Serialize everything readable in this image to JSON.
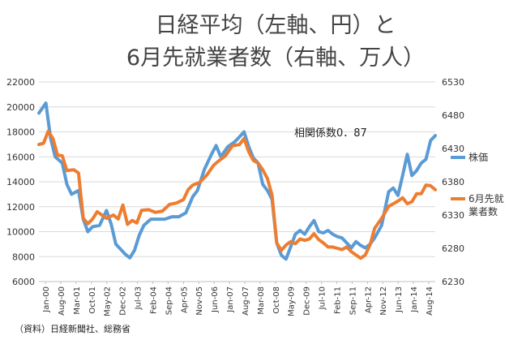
{
  "chart_data": {
    "type": "line",
    "title_lines": [
      "日経平均（左軸、円）と",
      "6月先就業者数（右軸、万人）"
    ],
    "annotation": "相関係数0．87",
    "source": "（資料）日経新聞社、総務省",
    "colors": {
      "stock": "#5b9bd5",
      "employment": "#ed7d31"
    },
    "x_ticks": [
      "Jan-00",
      "Aug-00",
      "Mar-01",
      "Oct-01",
      "May-02",
      "Dec-02",
      "Jul-03",
      "Feb-04",
      "Sep-04",
      "Apr-05",
      "Nov-05",
      "Jun-06",
      "Jan-07",
      "Aug-07",
      "Mar-08",
      "Oct-08",
      "May-09",
      "Dec-09",
      "Jul-10",
      "Feb-11",
      "Sep-11",
      "Apr-12",
      "Nov-12",
      "Jun-13",
      "Jan-14",
      "Aug-14"
    ],
    "left_axis": {
      "min": 6000,
      "max": 22000,
      "ticks": [
        "6000",
        "8000",
        "10000",
        "12000",
        "14000",
        "16000",
        "18000",
        "20000",
        "22000"
      ]
    },
    "right_axis": {
      "min": 6230,
      "max": 6530,
      "ticks": [
        "6230",
        "6280",
        "6330",
        "6380",
        "6430",
        "6480",
        "6530"
      ]
    },
    "legend": [
      {
        "name": "株価",
        "color": "#5b9bd5"
      },
      {
        "name": "6月先就業者数",
        "color": "#ed7d31"
      }
    ],
    "series": [
      {
        "name": "株価",
        "axis": "left",
        "points": [
          [
            0,
            19500
          ],
          [
            3,
            20300
          ],
          [
            5,
            17500
          ],
          [
            7,
            16000
          ],
          [
            10,
            15500
          ],
          [
            12,
            13800
          ],
          [
            14,
            13000
          ],
          [
            17,
            13300
          ],
          [
            19,
            11000
          ],
          [
            21,
            10000
          ],
          [
            23,
            10400
          ],
          [
            26,
            10500
          ],
          [
            29,
            11700
          ],
          [
            31,
            10600
          ],
          [
            33,
            9000
          ],
          [
            35,
            8600
          ],
          [
            37,
            8200
          ],
          [
            39,
            7900
          ],
          [
            41,
            8500
          ],
          [
            43,
            9700
          ],
          [
            45,
            10500
          ],
          [
            48,
            11000
          ],
          [
            51,
            11000
          ],
          [
            54,
            11000
          ],
          [
            57,
            11200
          ],
          [
            60,
            11200
          ],
          [
            63,
            11500
          ],
          [
            66,
            12800
          ],
          [
            68,
            13300
          ],
          [
            71,
            15000
          ],
          [
            74,
            16200
          ],
          [
            76,
            16900
          ],
          [
            78,
            16000
          ],
          [
            81,
            16800
          ],
          [
            84,
            17200
          ],
          [
            86,
            17600
          ],
          [
            88,
            18000
          ],
          [
            90,
            16800
          ],
          [
            92,
            15900
          ],
          [
            94,
            15500
          ],
          [
            96,
            13800
          ],
          [
            98,
            13300
          ],
          [
            100,
            12600
          ],
          [
            102,
            9100
          ],
          [
            104,
            8100
          ],
          [
            106,
            7800
          ],
          [
            108,
            8800
          ],
          [
            110,
            9800
          ],
          [
            112,
            10100
          ],
          [
            114,
            9800
          ],
          [
            116,
            10400
          ],
          [
            118,
            10900
          ],
          [
            120,
            10000
          ],
          [
            122,
            9900
          ],
          [
            124,
            10100
          ],
          [
            126,
            9800
          ],
          [
            128,
            9600
          ],
          [
            130,
            9500
          ],
          [
            132,
            9100
          ],
          [
            134,
            8700
          ],
          [
            136,
            9200
          ],
          [
            138,
            8900
          ],
          [
            140,
            8700
          ],
          [
            142,
            9000
          ],
          [
            144,
            9500
          ],
          [
            147,
            10500
          ],
          [
            150,
            13200
          ],
          [
            152,
            13500
          ],
          [
            154,
            12900
          ],
          [
            156,
            14500
          ],
          [
            158,
            16200
          ],
          [
            160,
            14500
          ],
          [
            162,
            14900
          ],
          [
            164,
            15500
          ],
          [
            166,
            15800
          ],
          [
            168,
            17300
          ],
          [
            170,
            17700
          ]
        ]
      },
      {
        "name": "6月先就業者数",
        "axis": "right",
        "points": [
          [
            0,
            6436
          ],
          [
            2,
            6438
          ],
          [
            4,
            6456
          ],
          [
            6,
            6445
          ],
          [
            8,
            6420
          ],
          [
            10,
            6419
          ],
          [
            12,
            6397
          ],
          [
            15,
            6398
          ],
          [
            17,
            6393
          ],
          [
            19,
            6325
          ],
          [
            21,
            6317
          ],
          [
            23,
            6324
          ],
          [
            25,
            6335
          ],
          [
            27,
            6330
          ],
          [
            29,
            6325
          ],
          [
            32,
            6330
          ],
          [
            34,
            6324
          ],
          [
            36,
            6345
          ],
          [
            38,
            6316
          ],
          [
            40,
            6322
          ],
          [
            42,
            6318
          ],
          [
            44,
            6337
          ],
          [
            47,
            6338
          ],
          [
            50,
            6334
          ],
          [
            53,
            6336
          ],
          [
            56,
            6346
          ],
          [
            59,
            6348
          ],
          [
            62,
            6353
          ],
          [
            64,
            6368
          ],
          [
            66,
            6375
          ],
          [
            69,
            6379
          ],
          [
            72,
            6390
          ],
          [
            75,
            6405
          ],
          [
            77,
            6411
          ],
          [
            80,
            6419
          ],
          [
            83,
            6434
          ],
          [
            86,
            6436
          ],
          [
            88,
            6445
          ],
          [
            90,
            6425
          ],
          [
            92,
            6412
          ],
          [
            94,
            6408
          ],
          [
            96,
            6398
          ],
          [
            98,
            6385
          ],
          [
            100,
            6360
          ],
          [
            102,
            6288
          ],
          [
            104,
            6277
          ],
          [
            106,
            6285
          ],
          [
            108,
            6290
          ],
          [
            110,
            6287
          ],
          [
            112,
            6294
          ],
          [
            114,
            6292
          ],
          [
            116,
            6294
          ],
          [
            118,
            6302
          ],
          [
            120,
            6293
          ],
          [
            122,
            6288
          ],
          [
            124,
            6282
          ],
          [
            126,
            6282
          ],
          [
            128,
            6280
          ],
          [
            130,
            6278
          ],
          [
            132,
            6282
          ],
          [
            134,
            6275
          ],
          [
            136,
            6270
          ],
          [
            138,
            6265
          ],
          [
            140,
            6270
          ],
          [
            142,
            6285
          ],
          [
            144,
            6310
          ],
          [
            147,
            6325
          ],
          [
            150,
            6343
          ],
          [
            152,
            6347
          ],
          [
            154,
            6351
          ],
          [
            156,
            6356
          ],
          [
            158,
            6347
          ],
          [
            160,
            6350
          ],
          [
            162,
            6362
          ],
          [
            164,
            6362
          ],
          [
            166,
            6375
          ],
          [
            168,
            6374
          ],
          [
            170,
            6368
          ]
        ]
      }
    ]
  }
}
